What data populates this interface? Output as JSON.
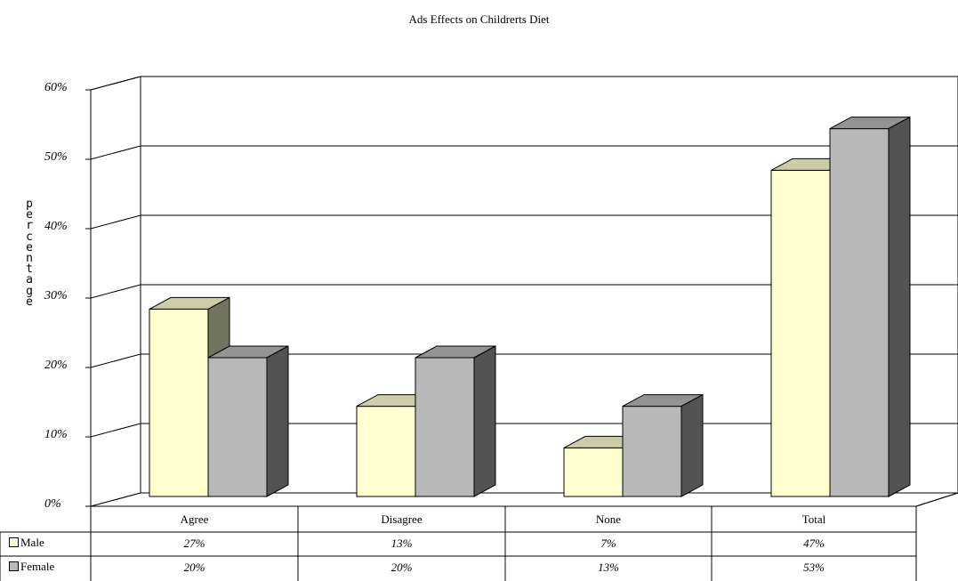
{
  "chart_data": {
    "type": "bar",
    "title": "Ads Effects on Childrerts Diet",
    "ylabel": "percentage",
    "yticks": [
      "0%",
      "10%",
      "20%",
      "30%",
      "40%",
      "50%",
      "60%"
    ],
    "ylim": [
      0,
      60
    ],
    "categories": [
      "Agree",
      "Disagree",
      "None",
      "Total"
    ],
    "series": [
      {
        "name": "Male",
        "values": [
          27,
          13,
          7,
          47
        ],
        "labels": [
          "27%",
          "13%",
          "7%",
          "47%"
        ],
        "color": "#ffffd0"
      },
      {
        "name": "Female",
        "values": [
          20,
          20,
          13,
          53
        ],
        "labels": [
          "20%",
          "20%",
          "13%",
          "53%"
        ],
        "color": "#b8b8b8"
      }
    ],
    "grid": true,
    "legend": "data-table-left"
  }
}
